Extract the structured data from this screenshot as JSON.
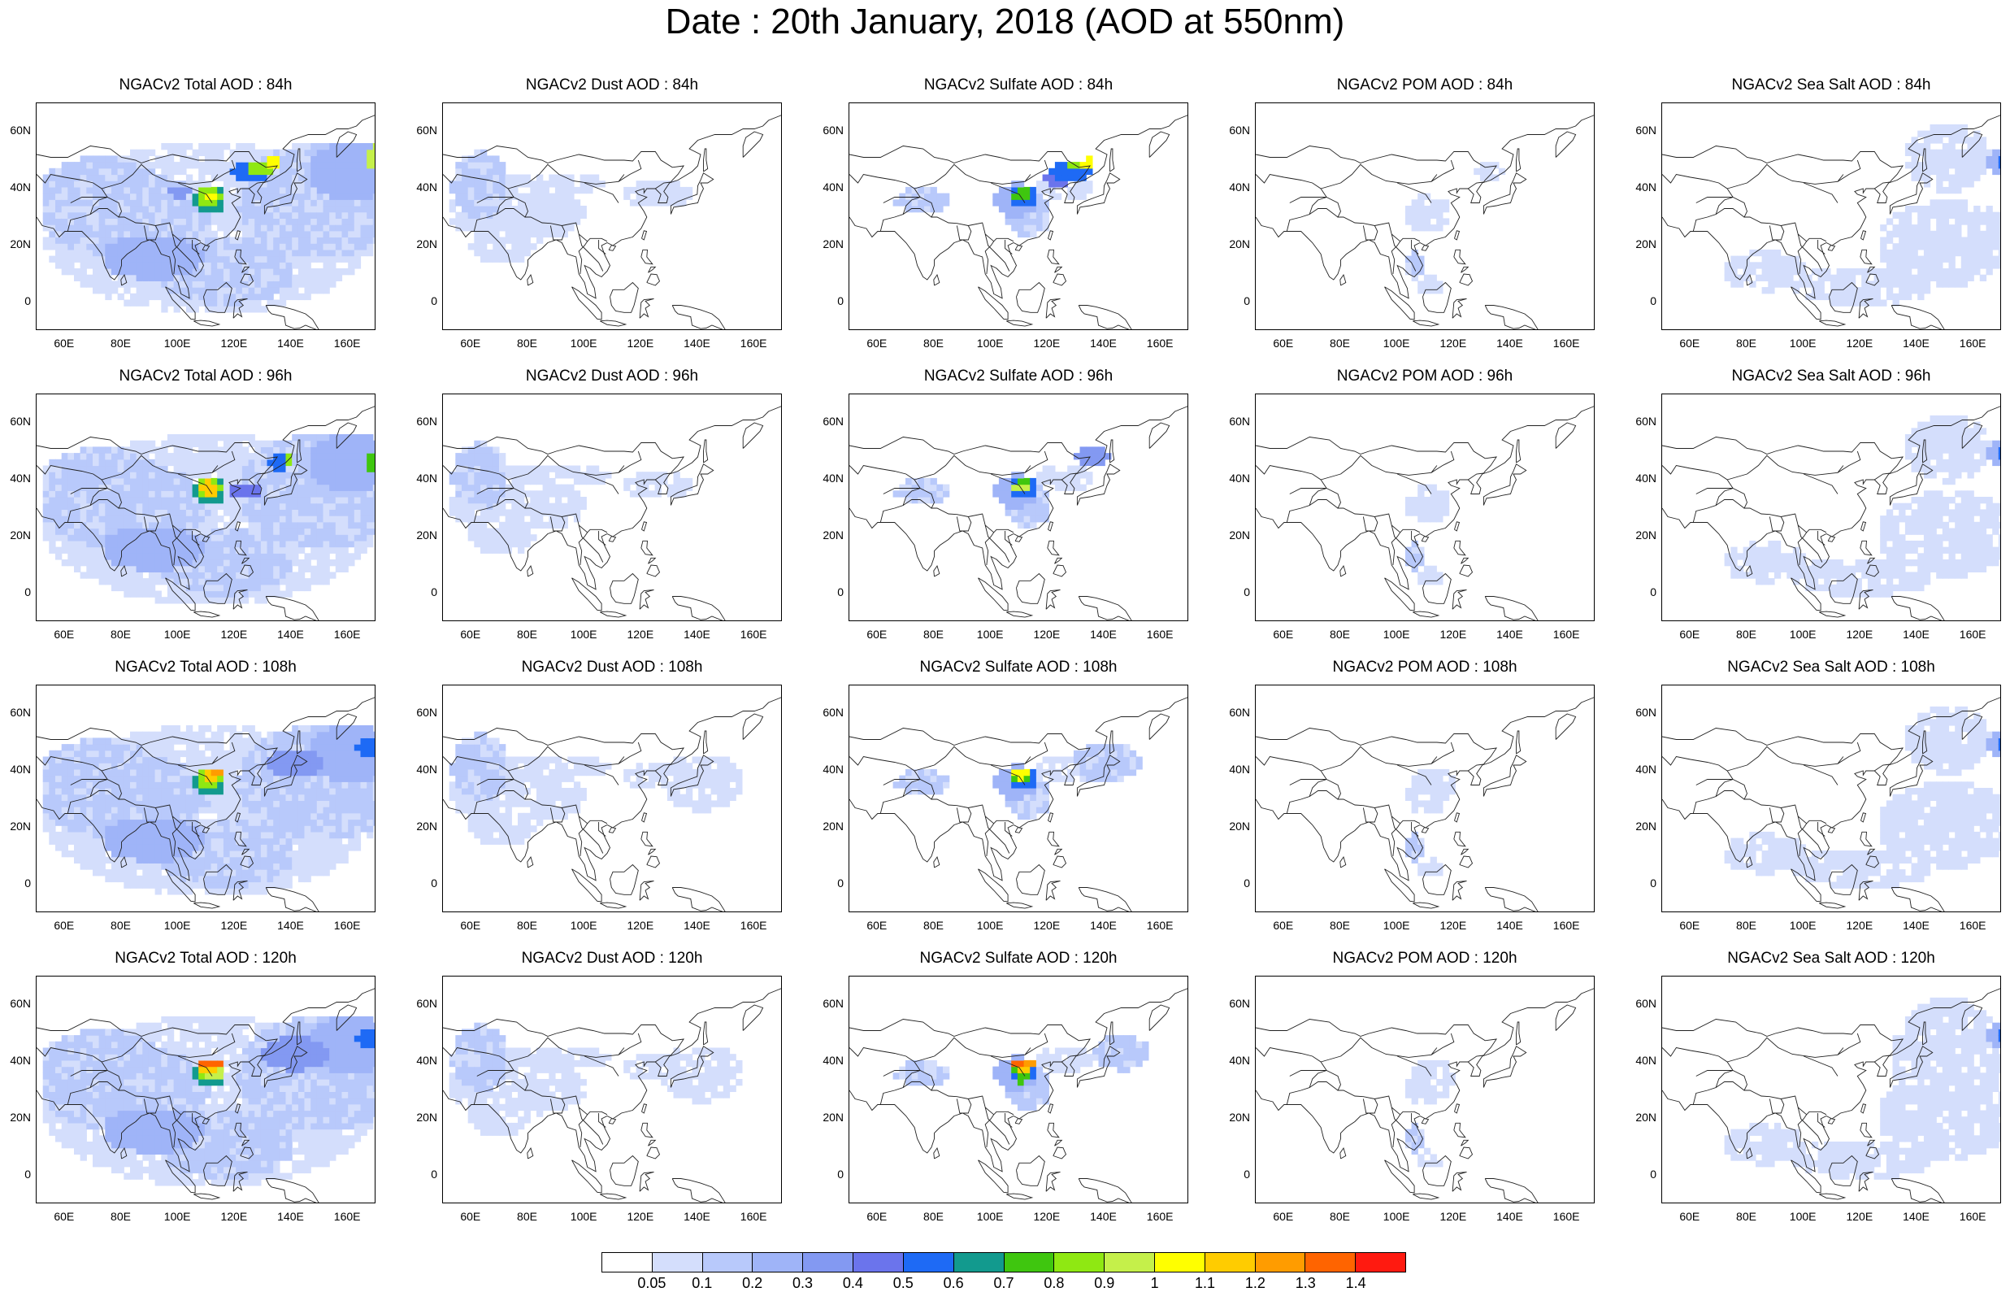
{
  "title": "Date : 20th January, 2018 (AOD at 550nm)",
  "colors": {
    "land_outline": "#222222",
    "background": "#ffffff"
  },
  "axes": {
    "x_ticks": [
      "60E",
      "80E",
      "100E",
      "120E",
      "140E",
      "160E"
    ],
    "y_ticks": [
      "60N",
      "40N",
      "20N",
      "0"
    ],
    "lon_range": [
      50,
      170
    ],
    "lat_range": [
      -10,
      70
    ]
  },
  "panels": [
    [
      {
        "title": "NGACv2 Total AOD : 84h",
        "species": "total",
        "hour": 84
      },
      {
        "title": "NGACv2 Dust AOD : 84h",
        "species": "dust",
        "hour": 84
      },
      {
        "title": "NGACv2 Sulfate AOD : 84h",
        "species": "sulfate",
        "hour": 84
      },
      {
        "title": "NGACv2 POM AOD : 84h",
        "species": "pom",
        "hour": 84
      },
      {
        "title": "NGACv2 Sea Salt AOD : 84h",
        "species": "seasalt",
        "hour": 84
      }
    ],
    [
      {
        "title": "NGACv2 Total AOD : 96h",
        "species": "total",
        "hour": 96
      },
      {
        "title": "NGACv2 Dust AOD : 96h",
        "species": "dust",
        "hour": 96
      },
      {
        "title": "NGACv2 Sulfate AOD : 96h",
        "species": "sulfate",
        "hour": 96
      },
      {
        "title": "NGACv2 POM AOD : 96h",
        "species": "pom",
        "hour": 96
      },
      {
        "title": "NGACv2 Sea Salt AOD : 96h",
        "species": "seasalt",
        "hour": 96
      }
    ],
    [
      {
        "title": "NGACv2 Total AOD : 108h",
        "species": "total",
        "hour": 108
      },
      {
        "title": "NGACv2 Dust AOD : 108h",
        "species": "dust",
        "hour": 108
      },
      {
        "title": "NGACv2 Sulfate AOD : 108h",
        "species": "sulfate",
        "hour": 108
      },
      {
        "title": "NGACv2 POM AOD : 108h",
        "species": "pom",
        "hour": 108
      },
      {
        "title": "NGACv2 Sea Salt AOD : 108h",
        "species": "seasalt",
        "hour": 108
      }
    ],
    [
      {
        "title": "NGACv2 Total AOD : 120h",
        "species": "total",
        "hour": 120
      },
      {
        "title": "NGACv2 Dust AOD : 120h",
        "species": "dust",
        "hour": 120
      },
      {
        "title": "NGACv2 Sulfate AOD : 120h",
        "species": "sulfate",
        "hour": 120
      },
      {
        "title": "NGACv2 POM AOD : 120h",
        "species": "pom",
        "hour": 120
      },
      {
        "title": "NGACv2 Sea Salt  AOD : 120h",
        "species": "seasalt",
        "hour": 120
      }
    ]
  ],
  "colorbar": {
    "colors": [
      "#ffffff",
      "#d4defc",
      "#b8c9fb",
      "#9fb4f8",
      "#8399f2",
      "#6b74ec",
      "#1e6af5",
      "#129a8e",
      "#3fc60f",
      "#8fe812",
      "#c5f04a",
      "#ffff00",
      "#ffcc00",
      "#ff9c00",
      "#ff6400",
      "#ff1a10"
    ],
    "labels": [
      "0.05",
      "0.1",
      "0.2",
      "0.3",
      "0.4",
      "0.5",
      "0.6",
      "0.7",
      "0.8",
      "0.9",
      "1",
      "1.1",
      "1.2",
      "1.3",
      "1.4"
    ]
  }
}
